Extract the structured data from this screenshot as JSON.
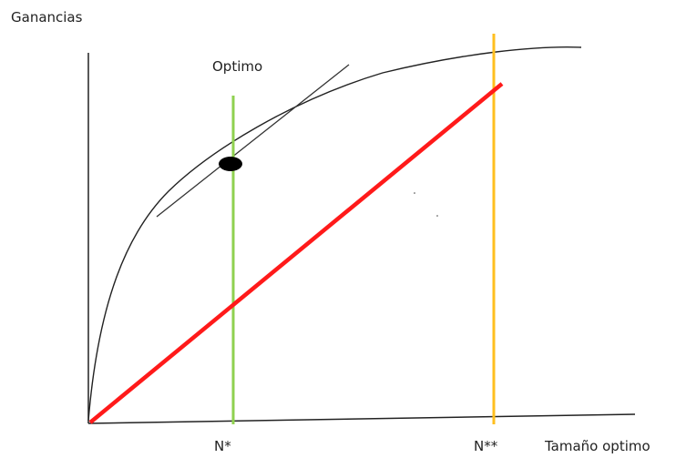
{
  "labels": {
    "y_axis": "Ganancias",
    "x_axis": "Tamaño optimo",
    "optimum": "Optimo",
    "n_star": "N*",
    "n_double_star": "N**"
  },
  "colors": {
    "axis": "#222222",
    "benefit_curve": "#222222",
    "tangent": "#333333",
    "cost_line": "#ff1a1a",
    "optimum_line": "#8fd14f",
    "n2_line": "#ffbf1f",
    "optimum_point": "#000000"
  }
}
